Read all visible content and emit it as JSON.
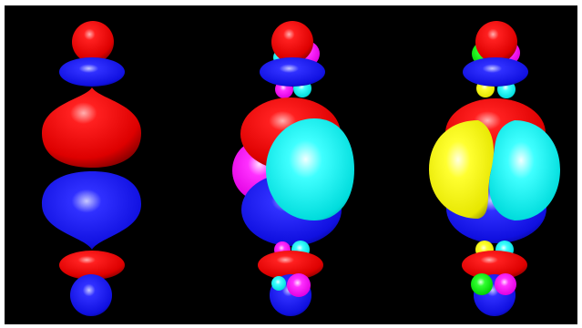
{
  "figure": {
    "background": "#000000",
    "frame_color": "#ffffff",
    "panels": [
      {
        "name": "orbital-model-1",
        "lobe_colors": [
          "#ff0000",
          "#0000ff"
        ]
      },
      {
        "name": "orbital-model-2",
        "lobe_colors": [
          "#ff0000",
          "#0000ff",
          "#00ffff",
          "#ff00ff"
        ]
      },
      {
        "name": "orbital-model-3",
        "lobe_colors": [
          "#ff0000",
          "#0000ff",
          "#00ffff",
          "#ffff00",
          "#00ff00",
          "#ff00ff"
        ]
      }
    ]
  }
}
